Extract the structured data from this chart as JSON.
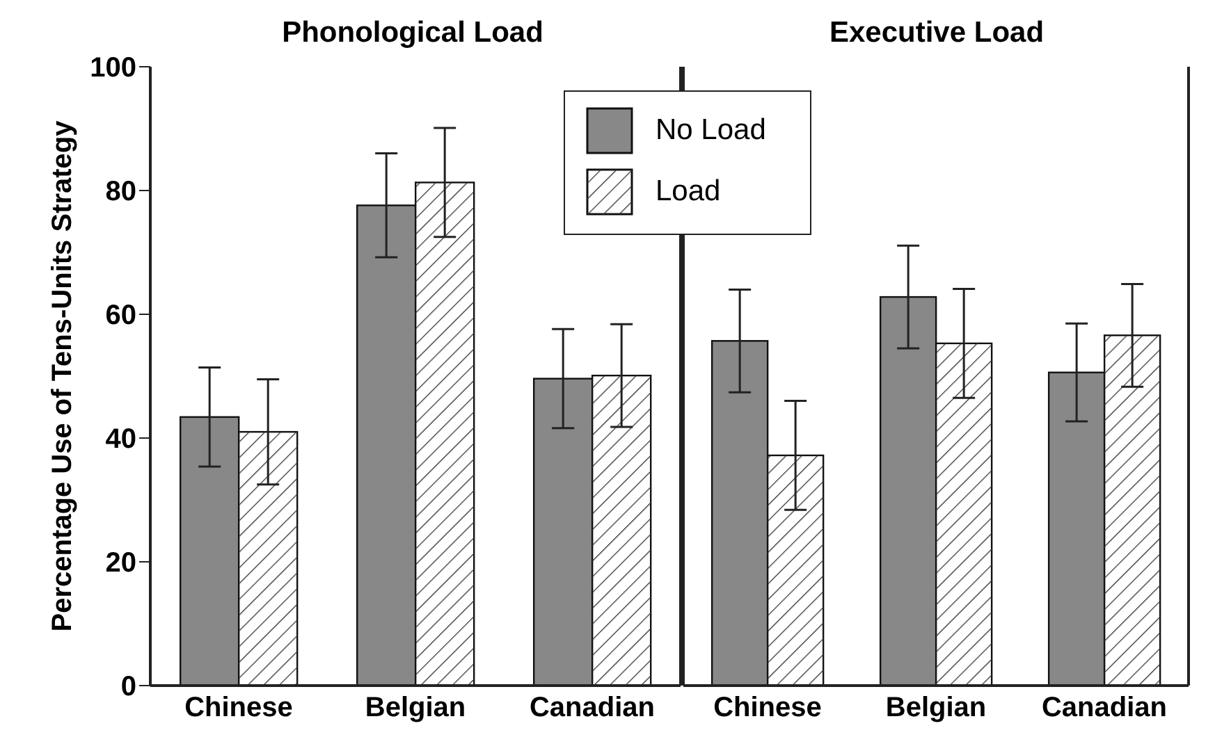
{
  "chart_data": [
    {
      "type": "bar",
      "title": "Phonological Load",
      "ylabel": "Percentage Use of Tens-Units Strategy",
      "categories": [
        "Chinese",
        "Belgian",
        "Canadian"
      ],
      "ylim": [
        0,
        100
      ],
      "yticks": [
        0,
        20,
        40,
        60,
        80,
        100
      ],
      "legend": "top right",
      "grid": false,
      "series": [
        {
          "name": "No Load",
          "color": "#888888",
          "values": [
            43.4,
            77.6,
            49.6
          ],
          "errors": [
            8,
            8.4,
            8
          ]
        },
        {
          "name": "Load",
          "color": "#ffffff",
          "values": [
            41,
            81.3,
            50.1
          ],
          "errors": [
            8.5,
            8.8,
            8.3
          ]
        }
      ]
    },
    {
      "type": "bar",
      "title": "Executive Load",
      "categories": [
        "Chinese",
        "Belgian",
        "Canadian"
      ],
      "ylim": [
        0,
        100
      ],
      "yticks": [
        0,
        20,
        40,
        60,
        80,
        100
      ],
      "tick_labels": "x",
      "grid": false,
      "series": [
        {
          "color": "#888888",
          "values": [
            55.7,
            62.8,
            50.6
          ],
          "errors": [
            8.3,
            8.3,
            7.9
          ]
        },
        {
          "color": "#ffffff",
          "values": [
            37.2,
            55.3,
            56.6
          ],
          "errors": [
            8.8,
            8.8,
            8.3
          ]
        }
      ]
    }
  ]
}
